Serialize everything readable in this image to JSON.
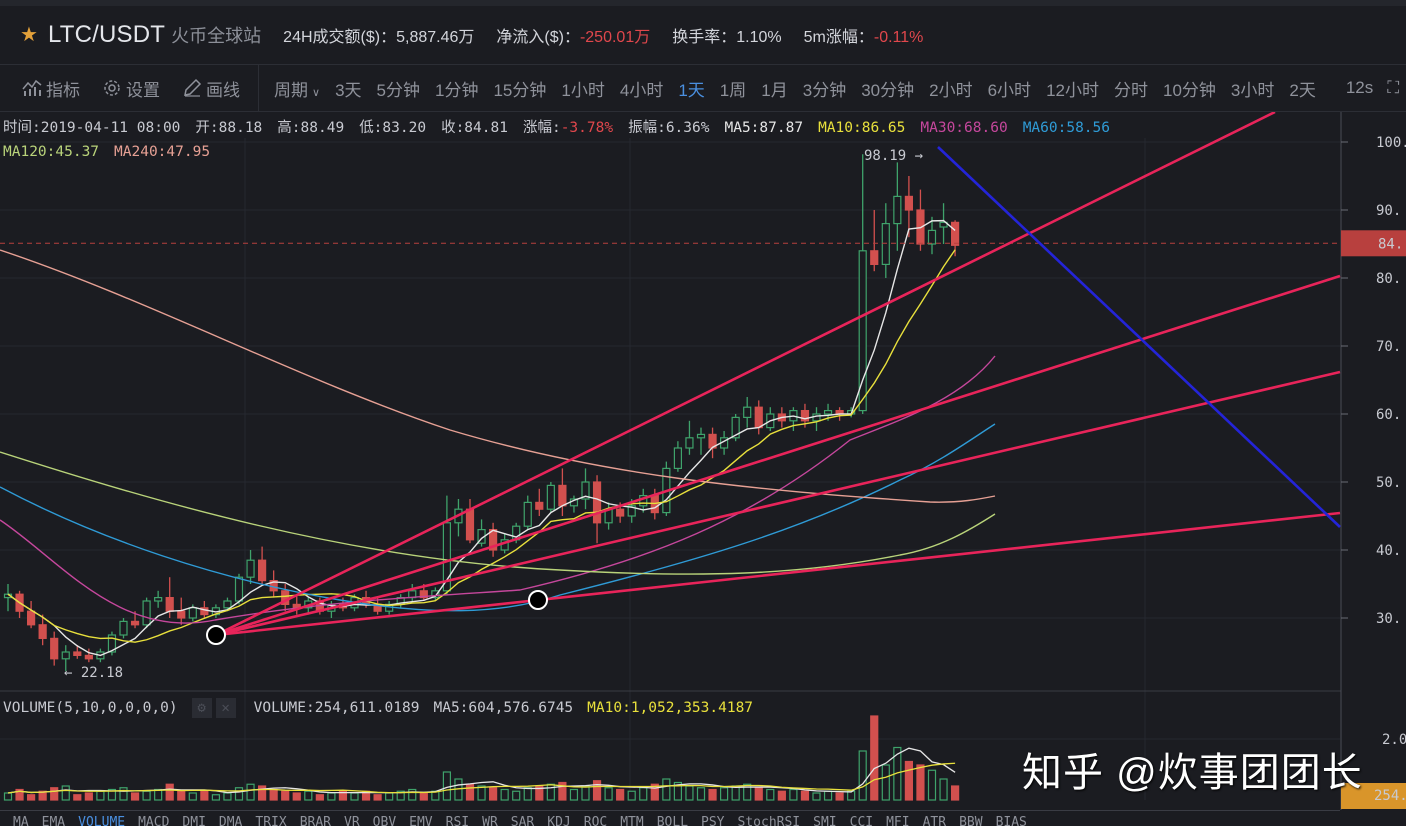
{
  "header": {
    "pair": "LTC/USDT",
    "exchange": "火币全球站",
    "stats": [
      {
        "label": "24H成交额($)：",
        "value": "5,887.46万",
        "negative": false
      },
      {
        "label": "净流入($)：",
        "value": "-250.01万",
        "negative": true
      },
      {
        "label": "换手率：",
        "value": "1.10%",
        "negative": false
      },
      {
        "label": "5m涨幅：",
        "value": "-0.11%",
        "negative": true
      }
    ]
  },
  "toolbar": {
    "indicators_label": "指标",
    "settings_label": "设置",
    "draw_label": "画线",
    "period_label": "周期",
    "periods": [
      "3天",
      "5分钟",
      "1分钟",
      "15分钟",
      "1小时",
      "4小时",
      "1天",
      "1周",
      "1月",
      "3分钟",
      "30分钟",
      "2小时",
      "6小时",
      "12小时",
      "分时",
      "10分钟",
      "3小时",
      "2天"
    ],
    "active_period": "1天",
    "refresh": "12s"
  },
  "ohlc": {
    "time": "时间:2019-04-11 08:00",
    "open": "开:88.18",
    "high": "高:88.49",
    "low": "低:83.20",
    "close": "收:84.81",
    "change_label": "涨幅:",
    "change": "-3.78%",
    "amplitude": "振幅:6.36%",
    "ma5": "MA5:87.87",
    "ma10": "MA10:86.65",
    "ma30": "MA30:68.60",
    "ma60": "MA60:58.56",
    "ma120": "MA120:45.37",
    "ma240": "MA240:47.95"
  },
  "colors": {
    "up": "#3fa36b",
    "down": "#d2504e",
    "ma5": "#e6e6e6",
    "ma10": "#e8e03c",
    "ma30": "#c5479c",
    "ma60": "#2f9bd6",
    "ma120": "#b9d37a",
    "ma240": "#e6a094",
    "trend": "#e8245a",
    "downtrend": "#2424d8",
    "price_tag": "#b8403e",
    "vol_tag": "#d9952a"
  },
  "annotations": {
    "high_marker": "98.19 →",
    "low_marker": "← 22.18",
    "current_price_tag": "84.",
    "volume_tag": "254."
  },
  "y_axis": {
    "ticks": [
      "100.",
      "90.",
      "80.",
      "70.",
      "60.",
      "50.",
      "40.",
      "30."
    ],
    "volume_ticks": [
      "2.0"
    ]
  },
  "volume_panel": {
    "title": "VOLUME(5,10,0,0,0,0)",
    "volume": "VOLUME:254,611.0189",
    "ma5": "MA5:604,576.6745",
    "ma10": "MA10:1,052,353.4187"
  },
  "indicator_tabs": [
    "MA",
    "EMA",
    "VOLUME",
    "MACD",
    "DMI",
    "DMA",
    "TRIX",
    "BRAR",
    "VR",
    "OBV",
    "EMV",
    "RSI",
    "WR",
    "SAR",
    "KDJ",
    "ROC",
    "MTM",
    "BOLL",
    "PSY",
    "StochRSI",
    "SMI",
    "CCI",
    "MFI",
    "ATR",
    "BBW",
    "BIAS"
  ],
  "active_indicator": "VOLUME",
  "watermark": "知乎 @炊事团团长",
  "chart_data": {
    "type": "candlestick",
    "title": "LTC/USDT 1D",
    "ylim": [
      24,
      104
    ],
    "candles": [
      [
        33,
        35,
        31,
        33.5
      ],
      [
        33.5,
        34,
        30,
        31
      ],
      [
        31,
        32.5,
        28.5,
        29
      ],
      [
        29,
        30.5,
        26,
        27
      ],
      [
        27,
        28,
        23,
        24
      ],
      [
        24,
        26,
        22.18,
        25
      ],
      [
        25,
        26,
        24,
        24.5
      ],
      [
        24.5,
        25.5,
        23.5,
        24
      ],
      [
        24,
        25.5,
        23.5,
        25
      ],
      [
        25,
        28,
        24.5,
        27.5
      ],
      [
        27.5,
        30,
        27,
        29.5
      ],
      [
        29.5,
        31,
        28.5,
        29
      ],
      [
        29,
        33,
        28.5,
        32.5
      ],
      [
        32.5,
        34,
        31.5,
        33
      ],
      [
        33,
        36,
        30,
        31
      ],
      [
        31,
        33,
        29,
        30
      ],
      [
        30,
        32,
        29.5,
        31.5
      ],
      [
        31.5,
        32.5,
        30,
        30.5
      ],
      [
        30.5,
        32,
        30,
        31.5
      ],
      [
        31.5,
        33,
        31,
        32.5
      ],
      [
        32.5,
        36.5,
        32,
        36
      ],
      [
        36,
        40,
        35,
        38.5
      ],
      [
        38.5,
        40.5,
        35,
        35.5
      ],
      [
        35.5,
        37,
        33,
        34
      ],
      [
        34,
        35,
        31,
        32
      ],
      [
        32,
        33.5,
        30.5,
        31.5
      ],
      [
        31.5,
        33,
        30.5,
        32.5
      ],
      [
        32.5,
        33,
        30.5,
        31
      ],
      [
        31,
        32.5,
        30,
        32
      ],
      [
        32,
        33,
        31,
        31.5
      ],
      [
        31.5,
        33.5,
        31,
        33
      ],
      [
        33,
        34,
        31.5,
        32
      ],
      [
        32,
        33,
        30.5,
        31
      ],
      [
        31,
        32.5,
        30.5,
        32
      ],
      [
        32,
        33.5,
        31.5,
        33
      ],
      [
        33,
        35,
        32.5,
        34
      ],
      [
        34,
        35,
        32.5,
        33
      ],
      [
        33,
        34.5,
        32.5,
        34
      ],
      [
        34,
        48,
        33.5,
        44
      ],
      [
        44,
        47.5,
        42,
        46
      ],
      [
        46,
        47.5,
        41,
        41.5
      ],
      [
        41,
        44.5,
        40.5,
        43
      ],
      [
        43,
        44,
        39,
        40
      ],
      [
        40,
        42.5,
        39.5,
        41.5
      ],
      [
        41.5,
        44,
        41,
        43.5
      ],
      [
        43.5,
        48,
        43,
        47
      ],
      [
        47,
        49,
        45,
        46
      ],
      [
        46,
        50,
        45.5,
        49.5
      ],
      [
        49.5,
        52,
        45,
        46.5
      ],
      [
        46.5,
        48,
        45.5,
        47.5
      ],
      [
        47.5,
        52,
        46,
        50
      ],
      [
        50,
        51,
        41,
        44
      ],
      [
        44,
        47,
        43,
        46
      ],
      [
        46,
        47,
        44,
        45
      ],
      [
        45,
        47.5,
        44,
        46.5
      ],
      [
        46.5,
        49,
        45.5,
        48
      ],
      [
        48,
        49,
        44.5,
        45.5
      ],
      [
        45.5,
        53,
        45,
        52
      ],
      [
        52,
        56,
        51.5,
        55
      ],
      [
        55,
        59,
        54,
        56.5
      ],
      [
        56.5,
        58,
        54,
        57
      ],
      [
        57,
        58,
        53.5,
        55
      ],
      [
        55,
        57.5,
        54,
        56.5
      ],
      [
        56.5,
        60,
        56,
        59.5
      ],
      [
        59.5,
        62.5,
        58,
        61
      ],
      [
        61,
        62,
        57,
        58
      ],
      [
        58,
        61,
        57.5,
        60
      ],
      [
        60,
        61,
        58,
        59
      ],
      [
        59,
        61,
        57.5,
        60.5
      ],
      [
        60.5,
        61.5,
        58,
        59
      ],
      [
        59,
        61,
        57.5,
        60
      ],
      [
        60,
        61.5,
        59,
        60.5
      ],
      [
        60.5,
        61,
        59,
        60
      ],
      [
        60,
        61,
        59.5,
        60.5
      ],
      [
        60.5,
        98.19,
        60,
        84
      ],
      [
        84,
        90,
        81,
        82
      ],
      [
        82,
        91,
        80,
        88
      ],
      [
        88,
        97,
        84,
        92
      ],
      [
        92,
        95,
        86,
        90
      ],
      [
        90,
        93,
        84,
        85
      ],
      [
        85,
        89,
        83.5,
        87
      ],
      [
        87.5,
        91,
        85,
        88.18
      ],
      [
        88.18,
        88.49,
        83.2,
        84.81
      ]
    ],
    "volume": [
      4,
      6,
      3,
      5,
      7,
      8,
      3,
      4,
      5,
      6,
      7,
      4,
      5,
      6,
      9,
      5,
      4,
      5,
      3,
      4,
      7,
      9,
      8,
      6,
      5,
      4,
      5,
      3,
      4,
      5,
      4,
      5,
      3,
      4,
      5,
      6,
      4,
      5,
      16,
      12,
      9,
      8,
      7,
      6,
      5,
      7,
      8,
      9,
      10,
      6,
      8,
      11,
      7,
      6,
      5,
      7,
      9,
      12,
      10,
      8,
      7,
      6,
      7,
      8,
      9,
      7,
      6,
      5,
      6,
      5,
      4,
      5,
      4,
      5,
      28,
      48,
      20,
      30,
      22,
      20,
      17,
      12,
      8
    ],
    "trend_lines": [
      {
        "from": [
          216,
          635
        ],
        "to": [
          1275,
          112
        ]
      },
      {
        "from": [
          216,
          635
        ],
        "to": [
          1340,
          276
        ]
      },
      {
        "from": [
          216,
          635
        ],
        "to": [
          1340,
          372
        ]
      },
      {
        "from": [
          216,
          635
        ],
        "to": [
          1340,
          513
        ]
      },
      {
        "from": [
          938,
          147
        ],
        "to": [
          1340,
          527
        ],
        "color": "downtrend"
      }
    ],
    "anchor_points": [
      [
        216,
        635
      ],
      [
        538,
        600
      ]
    ],
    "current_price": 84.81
  }
}
